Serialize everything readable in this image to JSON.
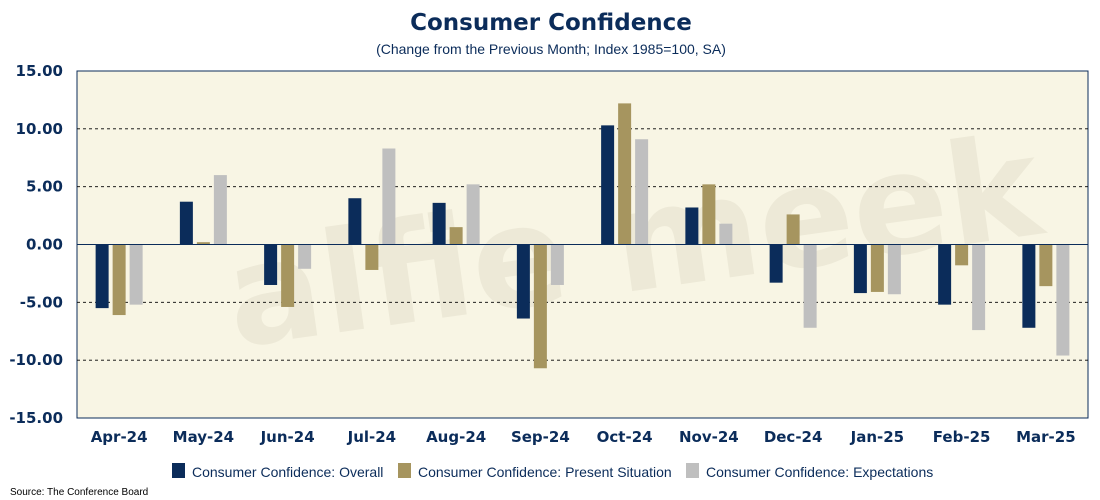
{
  "chart_data": {
    "type": "bar",
    "title": "Consumer Confidence",
    "subtitle": "(Change from the Previous Month; Index 1985=100, SA)",
    "categories": [
      "Apr-24",
      "May-24",
      "Jun-24",
      "Jul-24",
      "Aug-24",
      "Sep-24",
      "Oct-24",
      "Nov-24",
      "Dec-24",
      "Jan-25",
      "Feb-25",
      "Mar-25"
    ],
    "series": [
      {
        "name": "Consumer Confidence: Overall",
        "color": "#0b2c5a",
        "values": [
          -5.5,
          3.7,
          -3.5,
          4.0,
          3.6,
          -6.4,
          10.3,
          3.2,
          -3.3,
          -4.2,
          -5.2,
          -7.2
        ]
      },
      {
        "name": "Consumer Confidence: Present Situation",
        "color": "#a6955f",
        "values": [
          -6.1,
          0.2,
          -5.4,
          -2.2,
          1.5,
          -10.7,
          12.2,
          5.2,
          2.6,
          -4.1,
          -1.8,
          -3.6
        ]
      },
      {
        "name": "Consumer Confidence: Expectations",
        "color": "#bfbfbf",
        "values": [
          -5.2,
          6.0,
          -2.1,
          8.3,
          5.2,
          -3.5,
          9.1,
          1.8,
          -7.2,
          -4.3,
          -7.4,
          -9.6
        ]
      }
    ],
    "yticks": [
      "15.00",
      "10.00",
      "5.00",
      "0.00",
      "-5.00",
      "-10.00",
      "-15.00"
    ],
    "ylim": [
      -15,
      15
    ],
    "grid": true,
    "legend_position": "bottom",
    "plot_background": "#f8f5e4"
  },
  "watermark_text": "alfie meek",
  "source": "Source: The Conference Board"
}
